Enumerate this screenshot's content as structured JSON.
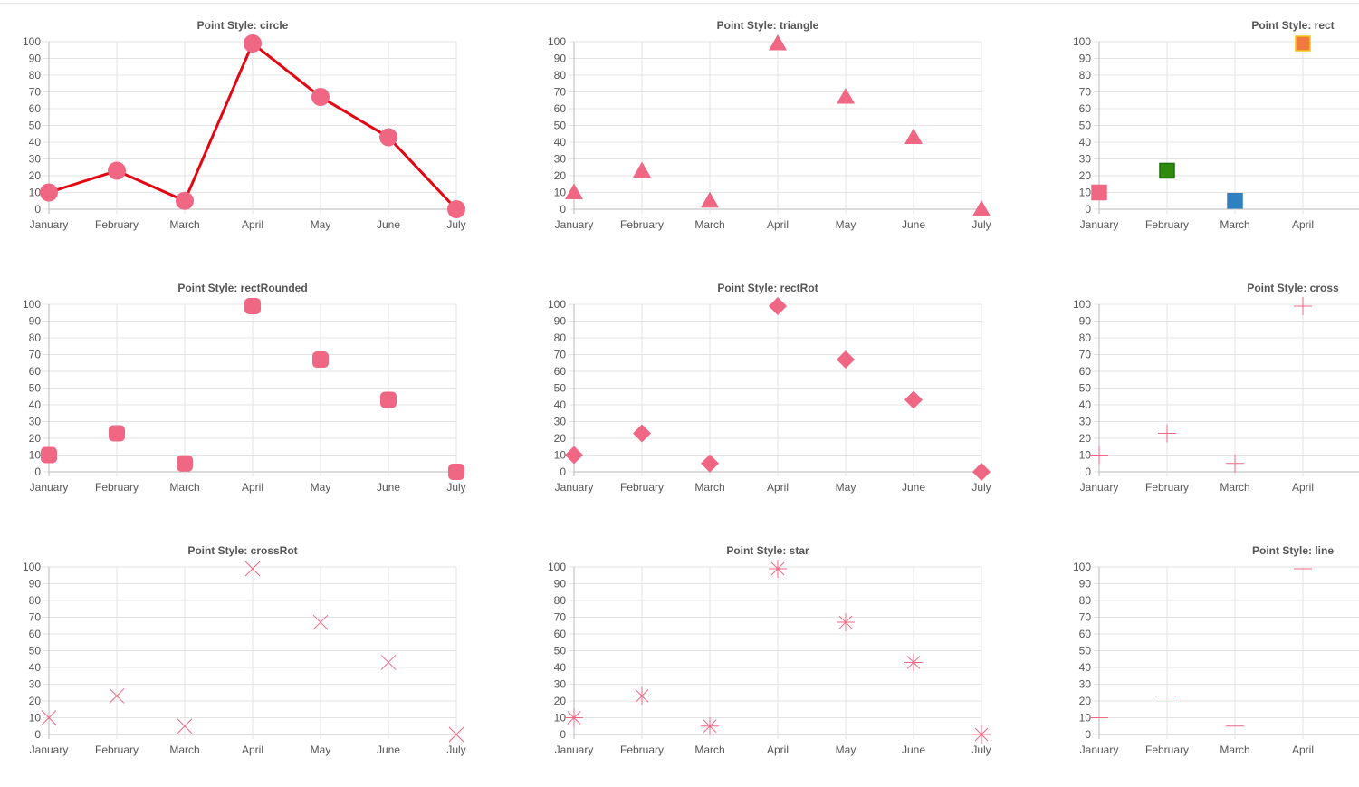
{
  "page": {
    "background": "#ffffff"
  },
  "style": {
    "point_color": "#f06784",
    "line_color": "#e30613",
    "grid_color": "#e3e3e3",
    "axis_color": "#b8b8b8",
    "text_color": "#555555",
    "title_color": "#555555"
  },
  "chart_data": [
    {
      "type": "line",
      "title": "Point Style: circle",
      "point_style": "circle",
      "show_line": true,
      "categories": [
        "January",
        "February",
        "March",
        "April",
        "May",
        "June",
        "July"
      ],
      "series": [
        {
          "values": [
            10,
            23,
            5,
            99,
            67,
            43,
            0
          ]
        }
      ],
      "ylim": [
        0,
        100
      ],
      "yticks": [
        0,
        10,
        20,
        30,
        40,
        50,
        60,
        70,
        80,
        90,
        100
      ],
      "grid": true
    },
    {
      "type": "scatter",
      "title": "Point Style: triangle",
      "point_style": "triangle",
      "show_line": false,
      "categories": [
        "January",
        "February",
        "March",
        "April",
        "May",
        "June",
        "July"
      ],
      "series": [
        {
          "values": [
            10,
            23,
            5,
            99,
            67,
            43,
            0
          ]
        }
      ],
      "ylim": [
        0,
        100
      ],
      "yticks": [
        0,
        10,
        20,
        30,
        40,
        50,
        60,
        70,
        80,
        90,
        100
      ],
      "grid": true
    },
    {
      "type": "scatter",
      "title": "Point Style: rect",
      "point_style": "rect",
      "show_line": false,
      "categories": [
        "January",
        "February",
        "March",
        "April"
      ],
      "series": [
        {
          "values": [
            10,
            23,
            5,
            99
          ]
        }
      ],
      "point_colors": [
        "#f06784",
        "#2e8b0e",
        "#2f7fc1",
        "#f07a3e"
      ],
      "point_borders": [
        "#f06784",
        "#1f6e08",
        "#2f7fc1",
        "#f5c518"
      ],
      "ylim": [
        0,
        100
      ],
      "yticks": [
        0,
        10,
        20,
        30,
        40,
        50,
        60,
        70,
        80,
        90,
        100
      ],
      "grid": true
    },
    {
      "type": "scatter",
      "title": "Point Style: rectRounded",
      "point_style": "rectRounded",
      "show_line": false,
      "categories": [
        "January",
        "February",
        "March",
        "April",
        "May",
        "June",
        "July"
      ],
      "series": [
        {
          "values": [
            10,
            23,
            5,
            99,
            67,
            43,
            0
          ]
        }
      ],
      "ylim": [
        0,
        100
      ],
      "yticks": [
        0,
        10,
        20,
        30,
        40,
        50,
        60,
        70,
        80,
        90,
        100
      ],
      "grid": true
    },
    {
      "type": "scatter",
      "title": "Point Style: rectRot",
      "point_style": "rectRot",
      "show_line": false,
      "categories": [
        "January",
        "February",
        "March",
        "April",
        "May",
        "June",
        "July"
      ],
      "series": [
        {
          "values": [
            10,
            23,
            5,
            99,
            67,
            43,
            0
          ]
        }
      ],
      "ylim": [
        0,
        100
      ],
      "yticks": [
        0,
        10,
        20,
        30,
        40,
        50,
        60,
        70,
        80,
        90,
        100
      ],
      "grid": true
    },
    {
      "type": "scatter",
      "title": "Point Style: cross",
      "point_style": "cross",
      "show_line": false,
      "categories": [
        "January",
        "February",
        "March",
        "April"
      ],
      "series": [
        {
          "values": [
            10,
            23,
            5,
            99
          ]
        }
      ],
      "ylim": [
        0,
        100
      ],
      "yticks": [
        0,
        10,
        20,
        30,
        40,
        50,
        60,
        70,
        80,
        90,
        100
      ],
      "grid": true
    },
    {
      "type": "scatter",
      "title": "Point Style: crossRot",
      "point_style": "crossRot",
      "show_line": false,
      "categories": [
        "January",
        "February",
        "March",
        "April",
        "May",
        "June",
        "July"
      ],
      "series": [
        {
          "values": [
            10,
            23,
            5,
            99,
            67,
            43,
            0
          ]
        }
      ],
      "ylim": [
        0,
        100
      ],
      "yticks": [
        0,
        10,
        20,
        30,
        40,
        50,
        60,
        70,
        80,
        90,
        100
      ],
      "grid": true
    },
    {
      "type": "scatter",
      "title": "Point Style: star",
      "point_style": "star",
      "show_line": false,
      "categories": [
        "January",
        "February",
        "March",
        "April",
        "May",
        "June",
        "July"
      ],
      "series": [
        {
          "values": [
            10,
            23,
            5,
            99,
            67,
            43,
            0
          ]
        }
      ],
      "ylim": [
        0,
        100
      ],
      "yticks": [
        0,
        10,
        20,
        30,
        40,
        50,
        60,
        70,
        80,
        90,
        100
      ],
      "grid": true
    },
    {
      "type": "scatter",
      "title": "Point Style: line",
      "point_style": "line",
      "show_line": false,
      "categories": [
        "January",
        "February",
        "March",
        "April"
      ],
      "series": [
        {
          "values": [
            10,
            23,
            5,
            99
          ]
        }
      ],
      "ylim": [
        0,
        100
      ],
      "yticks": [
        0,
        10,
        20,
        30,
        40,
        50,
        60,
        70,
        80,
        90,
        100
      ],
      "grid": true
    }
  ]
}
